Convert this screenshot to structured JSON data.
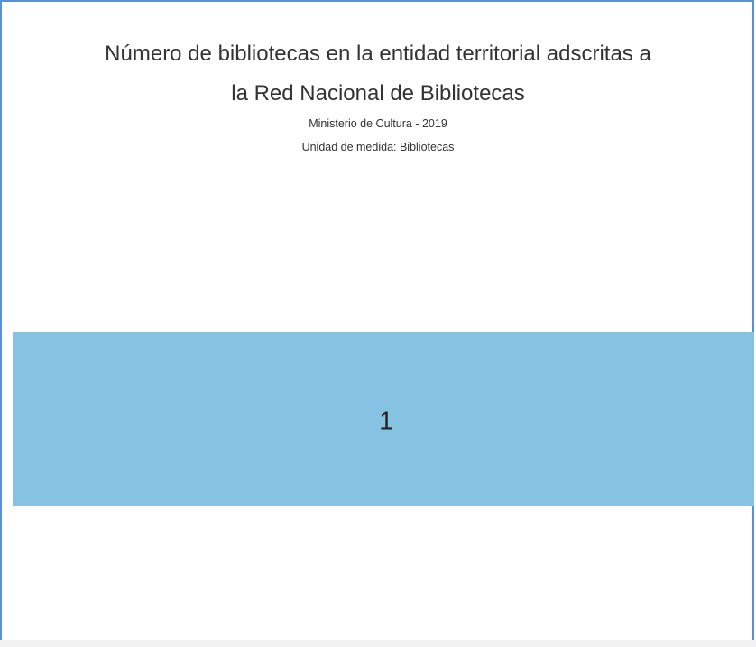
{
  "chart_data": {
    "type": "treemap",
    "title_lines": [
      "Número de bibliotecas en la entidad territorial adscritas a",
      "la Red Nacional de Bibliotecas"
    ],
    "subtitle_lines": [
      "Ministerio de Cultura - 2019",
      "Unidad de medida: Bibliotecas"
    ],
    "values": [
      1
    ],
    "data_labels": [
      "1"
    ],
    "colors": {
      "tile": "#86c3e3",
      "frame": "#5b8fd6"
    }
  }
}
